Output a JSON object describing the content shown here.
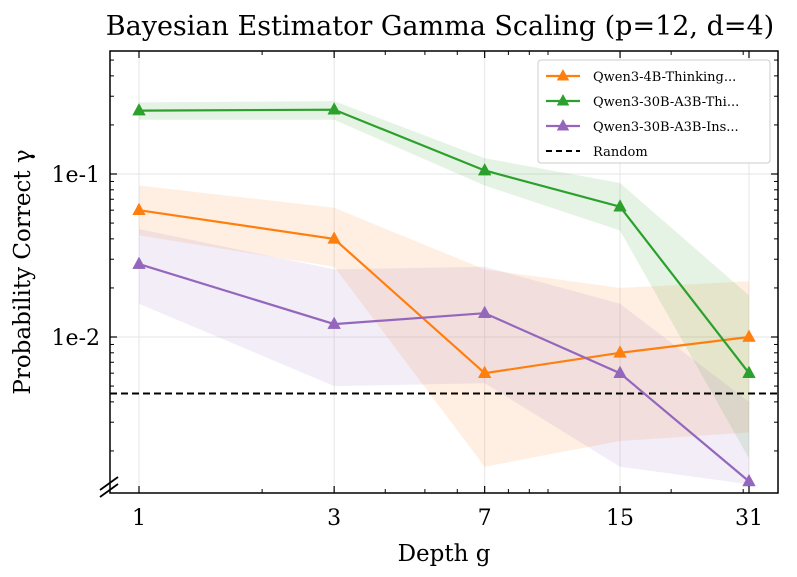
{
  "chart_data": {
    "type": "line",
    "title": "Bayesian Estimator Gamma Scaling (p=12, d=4)",
    "xlabel": "Depth g",
    "ylabel": "Probability Correct γ",
    "x": [
      1,
      3,
      7,
      15,
      31
    ],
    "x_tick_labels": [
      "1",
      "3",
      "7",
      "15",
      "31"
    ],
    "x_scale": "log",
    "y_scale": "log",
    "ylim": [
      0.00125,
      0.56
    ],
    "y_ticks": [
      {
        "value": 0.01,
        "label": "1e-2"
      },
      {
        "value": 0.1,
        "label": "1e-1"
      }
    ],
    "grid": true,
    "legend_position": "top-right",
    "series": [
      {
        "name": "Qwen3-4B-Thinking...",
        "color": "#ff7f0e",
        "marker": "triangle",
        "values": [
          0.06,
          0.04,
          0.006,
          0.008,
          0.01
        ],
        "upper": [
          0.085,
          0.062,
          0.026,
          0.02,
          0.022
        ],
        "lower": [
          0.042,
          0.027,
          0.0016,
          0.0023,
          0.0026
        ]
      },
      {
        "name": "Qwen3-30B-A3B-Thi...",
        "color": "#2ca02c",
        "marker": "triangle",
        "values": [
          0.245,
          0.248,
          0.105,
          0.063,
          0.006
        ],
        "upper": [
          0.275,
          0.28,
          0.125,
          0.088,
          0.018
        ],
        "lower": [
          0.215,
          0.215,
          0.085,
          0.045,
          0.0018
        ]
      },
      {
        "name": "Qwen3-30B-A3B-Ins...",
        "color": "#9467bd",
        "marker": "triangle",
        "values": [
          0.028,
          0.012,
          0.014,
          0.006,
          0.0013
        ],
        "upper": [
          0.046,
          0.026,
          0.027,
          0.016,
          0.004
        ],
        "lower": [
          0.016,
          0.005,
          0.0052,
          0.0016,
          0.00125
        ]
      }
    ],
    "reference_line": {
      "name": "Random",
      "value": 0.0045,
      "color": "#000000",
      "style": "dashed"
    }
  }
}
